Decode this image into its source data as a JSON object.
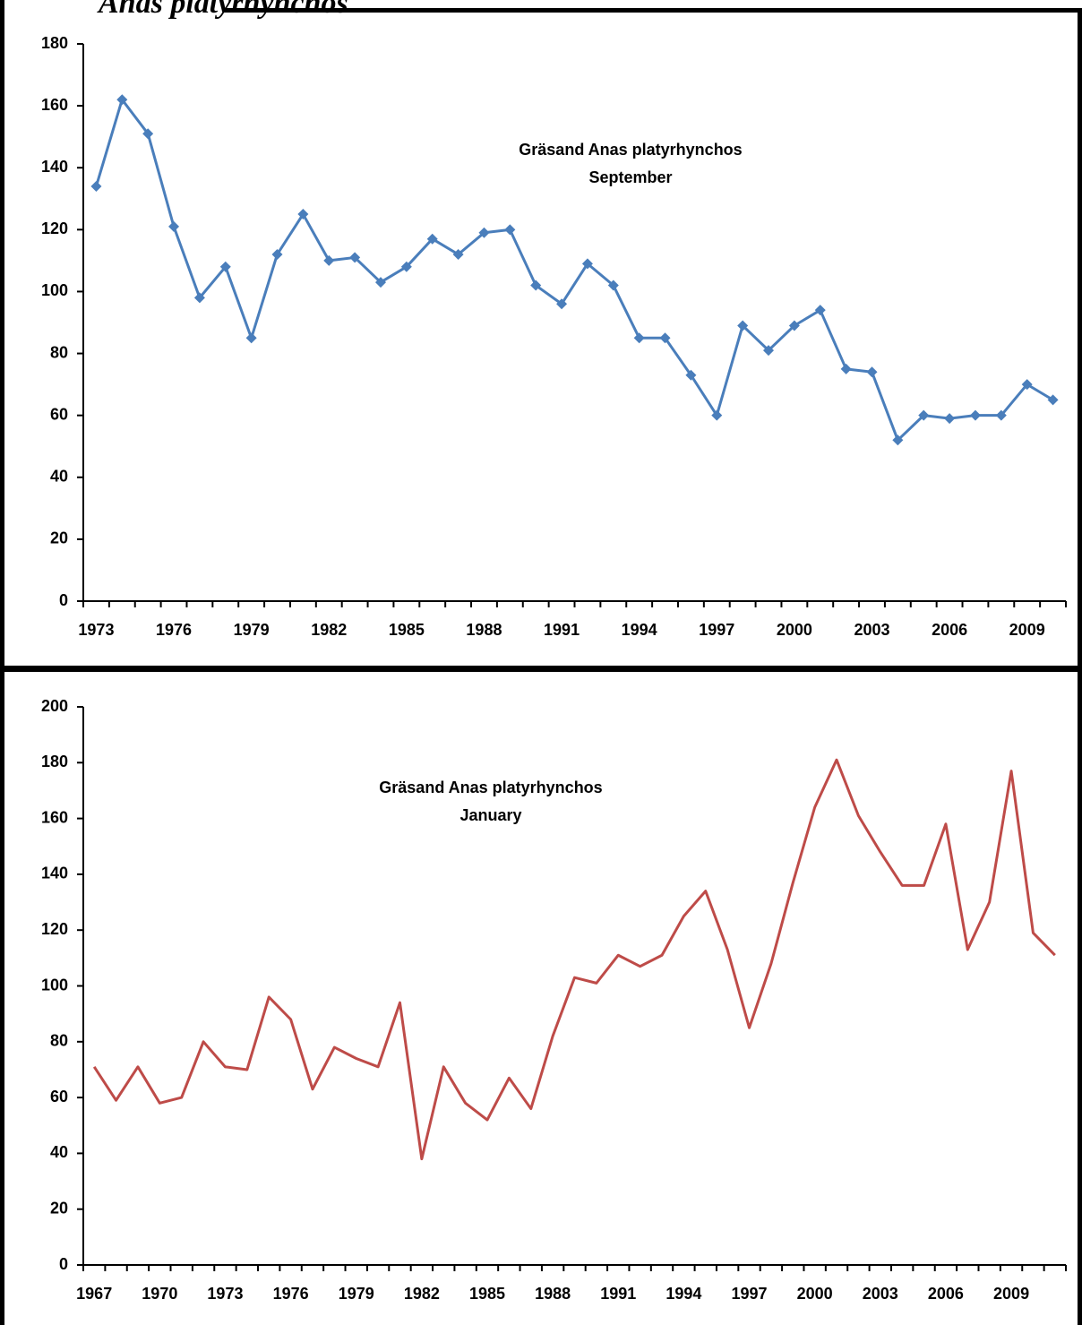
{
  "header": "Anas platyrhynchos",
  "chart_data": [
    {
      "type": "line",
      "title": "Gräsand Anas platyrhynchos",
      "subtitle": "September",
      "categories": [
        "1973",
        null,
        null,
        "1976",
        null,
        null,
        "1979",
        null,
        null,
        "1982",
        null,
        null,
        "1985",
        null,
        null,
        "1988",
        null,
        null,
        "1991",
        null,
        null,
        "1994",
        null,
        null,
        "1997",
        null,
        null,
        "2000",
        null,
        null,
        "2003",
        null,
        null,
        "2006",
        null,
        null,
        "2009",
        null
      ],
      "series": [
        {
          "name": "September",
          "color": "#4a7ebb",
          "marker": "diamond",
          "values": [
            134,
            162,
            151,
            121,
            98,
            108,
            85,
            112,
            125,
            110,
            111,
            103,
            108,
            117,
            112,
            119,
            120,
            102,
            96,
            109,
            102,
            85,
            85,
            73,
            60,
            89,
            81,
            89,
            94,
            75,
            74,
            52,
            60,
            59,
            60,
            60,
            70,
            65
          ]
        }
      ],
      "ylim": [
        0,
        180
      ],
      "yticks": [
        0,
        20,
        40,
        60,
        80,
        100,
        120,
        140,
        160,
        180
      ],
      "grid": false
    },
    {
      "type": "line",
      "title": "Gräsand Anas platyrhynchos",
      "subtitle": "January",
      "categories": [
        "1967",
        null,
        null,
        "1970",
        null,
        null,
        "1973",
        null,
        null,
        "1976",
        null,
        null,
        "1979",
        null,
        null,
        "1982",
        null,
        null,
        "1985",
        null,
        null,
        "1988",
        null,
        null,
        "1991",
        null,
        null,
        "1994",
        null,
        null,
        "1997",
        null,
        null,
        "2000",
        null,
        null,
        "2003",
        null,
        null,
        "2006",
        null,
        null,
        "2009",
        null,
        null
      ],
      "series": [
        {
          "name": "January",
          "color": "#be4b48",
          "marker": "none",
          "values": [
            71,
            59,
            71,
            58,
            60,
            80,
            71,
            70,
            96,
            88,
            63,
            78,
            74,
            71,
            94,
            38,
            71,
            58,
            52,
            67,
            56,
            82,
            103,
            101,
            111,
            107,
            111,
            125,
            134,
            113,
            85,
            108,
            137,
            164,
            181,
            161,
            148,
            136,
            136,
            158,
            113,
            130,
            177,
            119,
            111
          ]
        }
      ],
      "ylim": [
        0,
        200
      ],
      "yticks": [
        0,
        20,
        40,
        60,
        80,
        100,
        120,
        140,
        160,
        180,
        200
      ],
      "grid": false
    }
  ]
}
